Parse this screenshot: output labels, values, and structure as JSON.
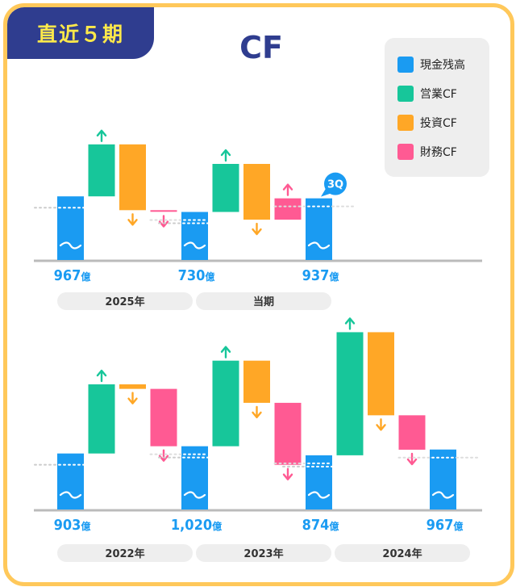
{
  "header": {
    "badge": "直近５期",
    "title": "CF"
  },
  "legend": [
    {
      "label": "現金残高",
      "color": "#1a9bf2"
    },
    {
      "label": "営業CF",
      "color": "#17c69a"
    },
    {
      "label": "投資CF",
      "color": "#ffa726"
    },
    {
      "label": "財務CF",
      "color": "#ff5a93"
    }
  ],
  "colors": {
    "cash": "#1a9bf2",
    "operating": "#17c69a",
    "investing": "#ffa726",
    "financing": "#ff5a93",
    "axis": "#bbbbbb",
    "period_bg": "#eeeeee",
    "value_text": "#1a9bf2",
    "badge_bg": "#1a9bf2"
  },
  "chart_data": [
    {
      "type": "bar",
      "subtype": "waterfall",
      "series": [
        "現金残高",
        "営業CF",
        "投資CF",
        "財務CF"
      ],
      "groups": [
        {
          "period": "2025年",
          "start_cash": 967,
          "start_label": "967億",
          "operating": 790,
          "investing": -1000,
          "financing": -27,
          "end_cash": 730,
          "end_label": "730億"
        },
        {
          "period": "当期",
          "start_cash": 730,
          "operating": 730,
          "investing": -847,
          "financing": 324,
          "end_cash": 937,
          "end_label": "937億",
          "end_badge": "3Q"
        }
      ]
    },
    {
      "type": "bar",
      "subtype": "waterfall",
      "series": [
        "現金残高",
        "営業CF",
        "投資CF",
        "財務CF"
      ],
      "groups": [
        {
          "period": "2022年",
          "start_cash": 903,
          "start_label": "903億",
          "operating": 1115,
          "investing": -73,
          "financing": -925,
          "end_cash": 1020,
          "end_label": "1,020億"
        },
        {
          "period": "2023年",
          "start_cash": 1020,
          "operating": 1380,
          "investing": -680,
          "financing": -1000,
          "end_cash": 874,
          "end_label": "874億"
        },
        {
          "period": "2024年",
          "start_cash": 874,
          "operating": 1985,
          "investing": -1340,
          "financing": -555,
          "end_cash": 967,
          "end_label": "967億"
        }
      ]
    }
  ]
}
